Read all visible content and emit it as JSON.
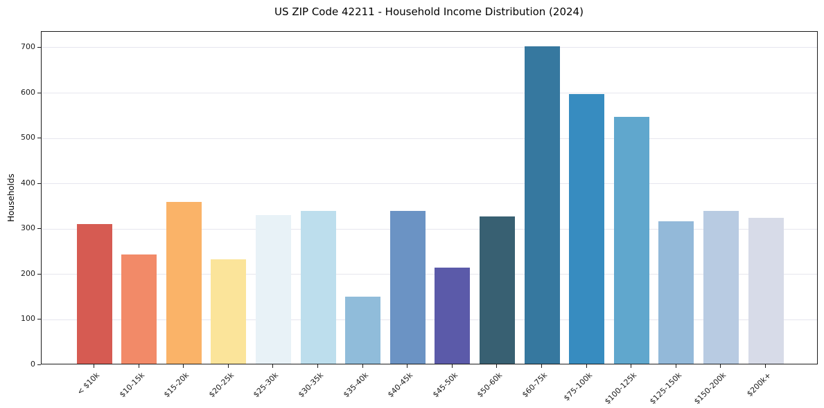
{
  "chart_data": {
    "type": "bar",
    "title": "US ZIP Code 42211 - Household Income Distribution (2024)",
    "xlabel": "",
    "ylabel": "Households",
    "categories": [
      "< $10k",
      "$10-15k",
      "$15-20k",
      "$20-25k",
      "$25-30k",
      "$30-35k",
      "$35-40k",
      "$40-45k",
      "$45-50k",
      "$50-60k",
      "$60-75k",
      "$75-100k",
      "$100-125k",
      "$125-150k",
      "$150-200k",
      "$200k+"
    ],
    "values": [
      308,
      241,
      357,
      230,
      328,
      337,
      148,
      337,
      212,
      325,
      700,
      595,
      545,
      314,
      337,
      322
    ],
    "bar_colors": [
      "#d65b52",
      "#f28a68",
      "#fab368",
      "#fbe49a",
      "#e8f2f7",
      "#bddeed",
      "#90bcda",
      "#6b93c4",
      "#5b5aa9",
      "#386072",
      "#36789f",
      "#378cc0",
      "#60a7cd",
      "#93b9d9",
      "#b8cbe2",
      "#d7dbe8"
    ],
    "ylim": [
      0,
      735
    ],
    "yticks": [
      0,
      100,
      200,
      300,
      400,
      500,
      600,
      700
    ],
    "grid": "horizontal",
    "legend": "none",
    "background_color": "#ffffff",
    "gridline_color": "#e6e6ee",
    "spine_color": "#1a1a1a",
    "text_color": "#1a1a1a"
  }
}
